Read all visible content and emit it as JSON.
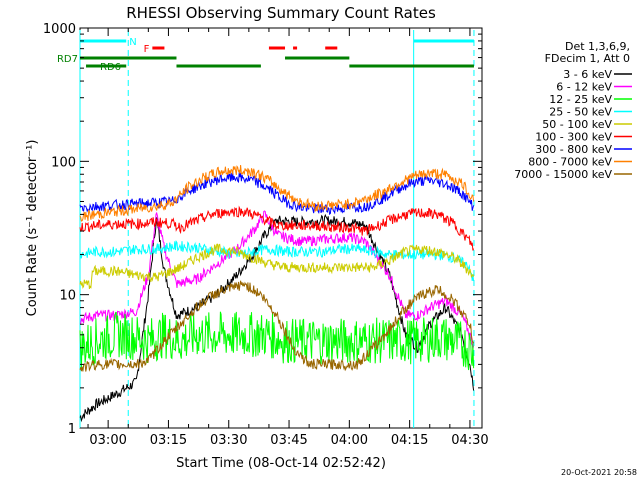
{
  "chart_data": {
    "type": "line",
    "title": "RHESSI Observing Summary Count Rates",
    "xlabel": "Start Time (08-Oct-14 02:52:42)",
    "ylabel": "Count Rate (s⁻¹ detector⁻¹)",
    "yscale": "log",
    "ylim": [
      1,
      1000
    ],
    "xlim_minutes": [
      -7,
      93
    ],
    "x_ticks": [
      {
        "m": 0,
        "label": "03:00"
      },
      {
        "m": 15,
        "label": "03:15"
      },
      {
        "m": 30,
        "label": "03:30"
      },
      {
        "m": 45,
        "label": "03:45"
      },
      {
        "m": 60,
        "label": "04:00"
      },
      {
        "m": 75,
        "label": "04:15"
      },
      {
        "m": 90,
        "label": "04:30"
      }
    ],
    "y_ticks": [
      {
        "v": 1,
        "label": "1"
      },
      {
        "v": 10,
        "label": "10"
      },
      {
        "v": 100,
        "label": "100"
      },
      {
        "v": 1000,
        "label": "1000"
      }
    ],
    "legend_header": [
      "Det 1,3,6,9,",
      "FDecim 1, Att 0"
    ],
    "timestamp": "20-Oct-2021 20:58",
    "series": [
      {
        "name": "3 - 6 keV",
        "color": "#000000",
        "points": [
          [
            -7,
            1.2
          ],
          [
            -3,
            1.5
          ],
          [
            2,
            1.8
          ],
          [
            7,
            2.2
          ],
          [
            10,
            10
          ],
          [
            12,
            38
          ],
          [
            14,
            15
          ],
          [
            17,
            7
          ],
          [
            22,
            8
          ],
          [
            27,
            10
          ],
          [
            32,
            14
          ],
          [
            36,
            20
          ],
          [
            39,
            28
          ],
          [
            42,
            36
          ],
          [
            48,
            35
          ],
          [
            54,
            36
          ],
          [
            60,
            35
          ],
          [
            64,
            33
          ],
          [
            70,
            14
          ],
          [
            74,
            5
          ],
          [
            77,
            4
          ],
          [
            80,
            6
          ],
          [
            84,
            8
          ],
          [
            88,
            5
          ],
          [
            90,
            3
          ],
          [
            91,
            2
          ]
        ]
      },
      {
        "name": "6 - 12 keV",
        "color": "#ff00ff",
        "points": [
          [
            -7,
            6.5
          ],
          [
            -3,
            7
          ],
          [
            2,
            7
          ],
          [
            7,
            7.5
          ],
          [
            10,
            14
          ],
          [
            12,
            40
          ],
          [
            14,
            22
          ],
          [
            17,
            12
          ],
          [
            22,
            13
          ],
          [
            27,
            17
          ],
          [
            32,
            22
          ],
          [
            36,
            30
          ],
          [
            39,
            40
          ],
          [
            42,
            28
          ],
          [
            48,
            25
          ],
          [
            54,
            26
          ],
          [
            60,
            27
          ],
          [
            64,
            25
          ],
          [
            70,
            14
          ],
          [
            74,
            7
          ],
          [
            77,
            7
          ],
          [
            80,
            8
          ],
          [
            84,
            9
          ],
          [
            88,
            7
          ],
          [
            90,
            5
          ],
          [
            91,
            4
          ]
        ]
      },
      {
        "name": "12 - 25 keV",
        "color": "#00ff00",
        "points": [
          [
            -7,
            4
          ],
          [
            -3,
            4.5
          ],
          [
            2,
            5
          ],
          [
            7,
            4.8
          ],
          [
            10,
            4.5
          ],
          [
            14,
            5
          ],
          [
            18,
            4.5
          ],
          [
            22,
            5
          ],
          [
            27,
            5
          ],
          [
            32,
            5
          ],
          [
            36,
            5
          ],
          [
            40,
            5
          ],
          [
            44,
            4.5
          ],
          [
            50,
            4.5
          ],
          [
            54,
            4.5
          ],
          [
            58,
            4.5
          ],
          [
            62,
            4.5
          ],
          [
            66,
            4.5
          ],
          [
            70,
            4.5
          ],
          [
            74,
            4.5
          ],
          [
            78,
            4.5
          ],
          [
            82,
            4.8
          ],
          [
            86,
            4.5
          ],
          [
            90,
            4
          ],
          [
            91,
            3.5
          ]
        ]
      },
      {
        "name": "25 - 50 keV",
        "color": "#00ffff",
        "points": [
          [
            -7,
            20
          ],
          [
            -3,
            21
          ],
          [
            2,
            21
          ],
          [
            7,
            22
          ],
          [
            12,
            22
          ],
          [
            16,
            23
          ],
          [
            20,
            23
          ],
          [
            24,
            22
          ],
          [
            28,
            21
          ],
          [
            32,
            20
          ],
          [
            36,
            21
          ],
          [
            40,
            22
          ],
          [
            44,
            21
          ],
          [
            50,
            21
          ],
          [
            54,
            21
          ],
          [
            58,
            22
          ],
          [
            62,
            22
          ],
          [
            66,
            21
          ],
          [
            70,
            20
          ],
          [
            74,
            20
          ],
          [
            78,
            20
          ],
          [
            82,
            20
          ],
          [
            86,
            19
          ],
          [
            90,
            16
          ],
          [
            91,
            12
          ]
        ]
      },
      {
        "name": "50 - 100 keV",
        "color": "#cccc00",
        "points": [
          [
            -7,
            12
          ],
          [
            -4,
            12
          ],
          [
            -6.5,
            15
          ],
          [
            -3,
            15
          ],
          [
            2,
            15
          ],
          [
            7,
            14
          ],
          [
            12,
            13.5
          ],
          [
            18,
            16
          ],
          [
            22,
            19
          ],
          [
            27,
            22
          ],
          [
            32,
            21
          ],
          [
            36,
            19
          ],
          [
            40,
            17
          ],
          [
            44,
            16
          ],
          [
            50,
            16
          ],
          [
            54,
            16
          ],
          [
            58,
            16
          ],
          [
            62,
            16
          ],
          [
            66,
            16
          ],
          [
            70,
            18
          ],
          [
            74,
            21
          ],
          [
            78,
            22
          ],
          [
            82,
            21
          ],
          [
            86,
            19
          ],
          [
            90,
            15
          ],
          [
            91,
            13
          ]
        ]
      },
      {
        "name": "100 - 300 keV",
        "color": "#ff0000",
        "points": [
          [
            -7,
            32
          ],
          [
            -3,
            33
          ],
          [
            2,
            34
          ],
          [
            7,
            34
          ],
          [
            12,
            35
          ],
          [
            16,
            34
          ],
          [
            18,
            32
          ],
          [
            22,
            36
          ],
          [
            26,
            40
          ],
          [
            30,
            42
          ],
          [
            34,
            42
          ],
          [
            38,
            38
          ],
          [
            42,
            33
          ],
          [
            46,
            33
          ],
          [
            52,
            33
          ],
          [
            56,
            32
          ],
          [
            60,
            32
          ],
          [
            64,
            30
          ],
          [
            70,
            36
          ],
          [
            74,
            40
          ],
          [
            78,
            41
          ],
          [
            82,
            40
          ],
          [
            86,
            34
          ],
          [
            90,
            25
          ],
          [
            91,
            22
          ]
        ]
      },
      {
        "name": "300 - 800 keV",
        "color": "#0000ff",
        "points": [
          [
            -7,
            45
          ],
          [
            -3,
            46
          ],
          [
            2,
            47
          ],
          [
            7,
            48
          ],
          [
            12,
            49
          ],
          [
            16,
            50
          ],
          [
            20,
            60
          ],
          [
            24,
            68
          ],
          [
            28,
            74
          ],
          [
            32,
            76
          ],
          [
            36,
            72
          ],
          [
            40,
            62
          ],
          [
            44,
            50
          ],
          [
            48,
            45
          ],
          [
            52,
            44
          ],
          [
            56,
            44
          ],
          [
            60,
            45
          ],
          [
            64,
            46
          ],
          [
            68,
            52
          ],
          [
            72,
            62
          ],
          [
            76,
            70
          ],
          [
            80,
            72
          ],
          [
            84,
            68
          ],
          [
            88,
            58
          ],
          [
            91,
            45
          ]
        ]
      },
      {
        "name": "800 - 7000 keV",
        "color": "#ff8000",
        "points": [
          [
            -7,
            38
          ],
          [
            -3,
            40
          ],
          [
            2,
            42
          ],
          [
            7,
            44
          ],
          [
            12,
            46
          ],
          [
            16,
            49
          ],
          [
            20,
            64
          ],
          [
            24,
            76
          ],
          [
            28,
            84
          ],
          [
            32,
            86
          ],
          [
            36,
            84
          ],
          [
            40,
            72
          ],
          [
            44,
            58
          ],
          [
            48,
            49
          ],
          [
            52,
            46
          ],
          [
            56,
            47
          ],
          [
            60,
            48
          ],
          [
            64,
            52
          ],
          [
            68,
            58
          ],
          [
            72,
            68
          ],
          [
            76,
            77
          ],
          [
            80,
            82
          ],
          [
            84,
            79
          ],
          [
            88,
            68
          ],
          [
            91,
            52
          ]
        ]
      },
      {
        "name": "7000 - 15000 keV",
        "color": "#996600",
        "points": [
          [
            -7,
            2.8
          ],
          [
            -3,
            3
          ],
          [
            2,
            3
          ],
          [
            7,
            3
          ],
          [
            10,
            3.2
          ],
          [
            14,
            4.5
          ],
          [
            18,
            6
          ],
          [
            22,
            8
          ],
          [
            26,
            10
          ],
          [
            30,
            11
          ],
          [
            34,
            12
          ],
          [
            38,
            10
          ],
          [
            42,
            7
          ],
          [
            46,
            4
          ],
          [
            50,
            3
          ],
          [
            54,
            3
          ],
          [
            58,
            3
          ],
          [
            62,
            3
          ],
          [
            66,
            4
          ],
          [
            70,
            5.5
          ],
          [
            74,
            8
          ],
          [
            78,
            10
          ],
          [
            82,
            11
          ],
          [
            86,
            9
          ],
          [
            90,
            6
          ],
          [
            91,
            4
          ]
        ]
      }
    ],
    "flag_rows": [
      {
        "label": "N",
        "color": "#00ffff",
        "row": 1,
        "segments": [
          [
            -7,
            4.5
          ],
          [
            76,
            91
          ]
        ]
      },
      {
        "label": "F",
        "color": "#ff0000",
        "row": 2,
        "segments": [
          [
            11,
            14
          ],
          [
            40,
            44
          ],
          [
            46,
            47
          ],
          [
            54,
            57
          ]
        ]
      },
      {
        "label": "RD7",
        "color": "#008000",
        "row": 3,
        "segments": [
          [
            -7,
            17
          ],
          [
            44,
            60
          ]
        ]
      },
      {
        "label": "RD6",
        "color": "#008000",
        "row": 4,
        "segments": [
          [
            -5.5,
            4.5
          ],
          [
            17,
            38
          ],
          [
            60,
            91
          ]
        ]
      }
    ],
    "saa_lines": [
      {
        "m": -7,
        "color": "#00ffff",
        "style": "solid"
      },
      {
        "m": 5,
        "color": "#00ffff",
        "style": "dashed"
      },
      {
        "m": 76,
        "color": "#00ffff",
        "style": "solid"
      },
      {
        "m": 91,
        "color": "#00ffff",
        "style": "dashed"
      }
    ]
  }
}
